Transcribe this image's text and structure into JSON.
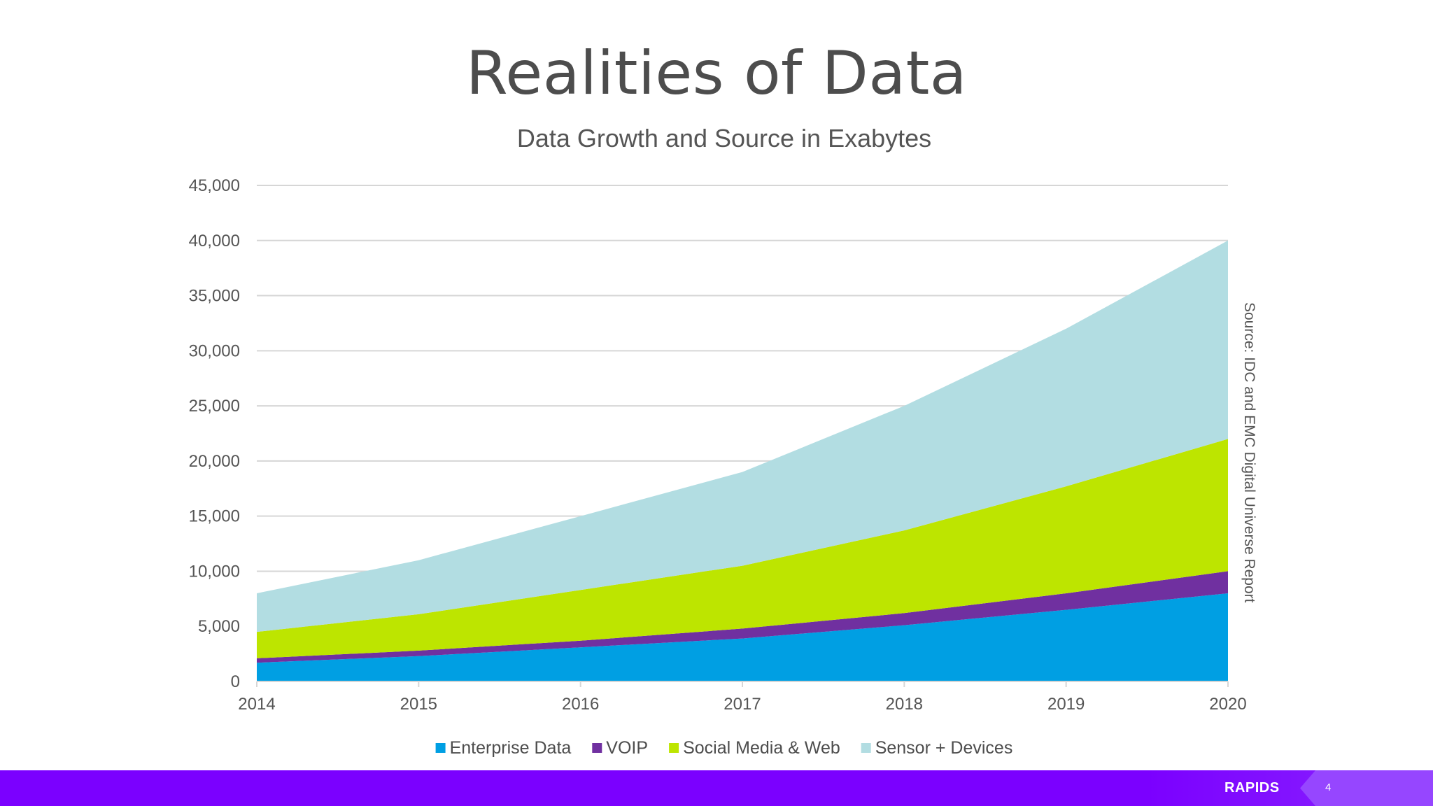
{
  "slide": {
    "title": "Realities of Data",
    "brand": "RAPIDS",
    "page_number": "4",
    "footer_color": "#7b00ff"
  },
  "chart_data": {
    "type": "area",
    "stacked": true,
    "title": "Data Growth and Source in Exabytes",
    "xlabel": "",
    "ylabel": "",
    "x": [
      "2014",
      "2015",
      "2016",
      "2017",
      "2018",
      "2019",
      "2020"
    ],
    "ylim": [
      0,
      45000
    ],
    "yticks": [
      "0",
      "5,000",
      "10,000",
      "15,000",
      "20,000",
      "25,000",
      "30,000",
      "35,000",
      "40,000",
      "45,000"
    ],
    "grid": true,
    "legend_position": "bottom",
    "source_note": "Source: IDC and EMC Digital Universe Report",
    "series": [
      {
        "name": "Enterprise Data",
        "color": "#009fe3",
        "values": [
          1700,
          2300,
          3100,
          3900,
          5100,
          6500,
          8000
        ]
      },
      {
        "name": "VOIP",
        "color": "#7030a0",
        "values": [
          400,
          500,
          600,
          900,
          1100,
          1500,
          2000
        ]
      },
      {
        "name": "Social Media & Web",
        "color": "#bde500",
        "values": [
          2400,
          3300,
          4600,
          5700,
          7500,
          9700,
          12000
        ]
      },
      {
        "name": "Sensor + Devices",
        "color": "#b2dde2",
        "values": [
          3500,
          4900,
          6700,
          8500,
          11300,
          14300,
          18000
        ]
      }
    ]
  }
}
